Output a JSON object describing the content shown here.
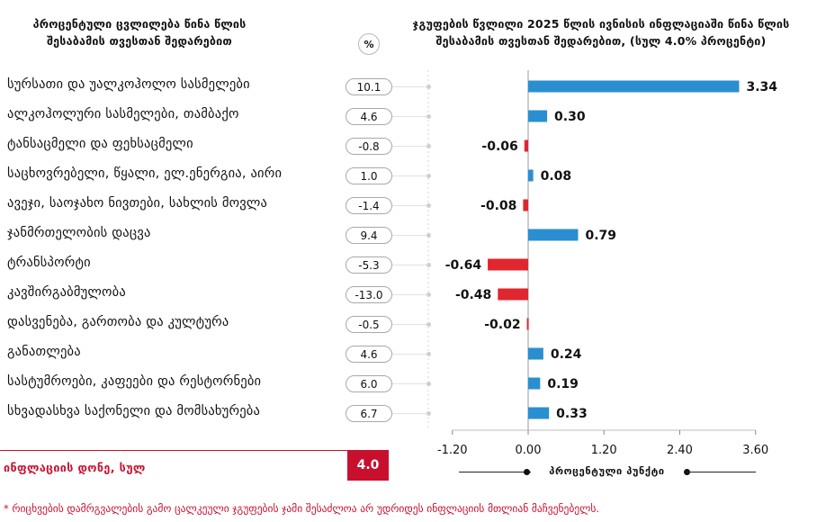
{
  "header": {
    "left_title": "პროცენტული ცვლილება წინა წლის\nშესაბამის თვესთან შედარებით",
    "right_title": "ჯგუფების წვლილი 2025 წლის ივნისის ინფლაციაში წინა წლის\nშესაბამის თვესთან შედარებით, (სულ 4.0% პროცენტი)",
    "percent_badge": "%"
  },
  "rows": [
    {
      "category": "სურსათი და უალკოჰოლო სასმელები",
      "change": "10.1",
      "contribution": 3.34,
      "label": "3.34"
    },
    {
      "category": "ალკოჰოლური სასმელები, თამბაქო",
      "change": "4.6",
      "contribution": 0.3,
      "label": "0.30"
    },
    {
      "category": "ტანსაცმელი და ფეხსაცმელი",
      "change": "-0.8",
      "contribution": -0.06,
      "label": "-0.06"
    },
    {
      "category": "საცხოვრებელი, წყალი, ელ.ენერგია, აირი",
      "change": "1.0",
      "contribution": 0.08,
      "label": "0.08"
    },
    {
      "category": "ავეჯი, საოჯახო ნივთები, სახლის მოვლა",
      "change": "-1.4",
      "contribution": -0.08,
      "label": "-0.08"
    },
    {
      "category": "ჯანმრთელობის დაცვა",
      "change": "9.4",
      "contribution": 0.79,
      "label": "0.79"
    },
    {
      "category": "ტრანსპორტი",
      "change": "-5.3",
      "contribution": -0.64,
      "label": "-0.64"
    },
    {
      "category": "კავშირგაბმულობა",
      "change": "-13.0",
      "contribution": -0.48,
      "label": "-0.48"
    },
    {
      "category": "დასვენება, გართობა და კულტურა",
      "change": "-0.5",
      "contribution": -0.02,
      "label": "-0.02"
    },
    {
      "category": "განათლება",
      "change": "4.6",
      "contribution": 0.24,
      "label": "0.24"
    },
    {
      "category": "სასტუმროები, კაფეები და რესტორნები",
      "change": "6.0",
      "contribution": 0.19,
      "label": "0.19"
    },
    {
      "category": "სხვადასხვა საქონელი და მომსახურება",
      "change": "6.7",
      "contribution": 0.33,
      "label": "0.33"
    }
  ],
  "footer": {
    "label": "ინფლაციის დონე, სულ",
    "total": "4.0",
    "axis_caption": "პროცენტული პუნქტი",
    "footnote": "* რიცხვების დამრგვალების გამო ცალკეული ჯგუფების ჯამი შესაძლოა არ უდრიდეს ინფლაციის მთლიან მაჩვენებელს."
  },
  "colors": {
    "positive": "#2a8fd0",
    "negative": "#e0262e",
    "accent": "#c8102e"
  },
  "chart_data": {
    "type": "bar",
    "orientation": "horizontal",
    "categories": [
      "სურსათი და უალკოჰოლო სასმელები",
      "ალკოჰოლური სასმელები, თამბაქო",
      "ტანსაცმელი და ფეხსაცმელი",
      "საცხოვრებელი, წყალი, ელ.ენერგია, აირი",
      "ავეჯი, საოჯახო ნივთები, სახლის მოვლა",
      "ჯანმრთელობის დაცვა",
      "ტრანსპორტი",
      "კავშირგაბმულობა",
      "დასვენება, გართობა და კულტურა",
      "განათლება",
      "სასტუმროები, კაფეები და რესტორნები",
      "სხვადასხვა საქონელი და მომსახურება"
    ],
    "values": [
      3.34,
      0.3,
      -0.06,
      0.08,
      -0.08,
      0.79,
      -0.64,
      -0.48,
      -0.02,
      0.24,
      0.19,
      0.33
    ],
    "xlim": [
      -1.2,
      3.6
    ],
    "xticks": [
      "-1.20",
      "0.00",
      "1.20",
      "2.40",
      "3.60"
    ],
    "xlabel": "პროცენტული პუნქტი",
    "grid": false
  }
}
